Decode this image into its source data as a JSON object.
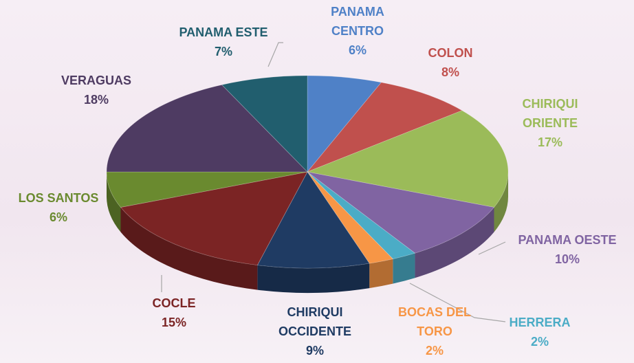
{
  "chart_data": {
    "type": "pie",
    "categories": [
      "PANAMA CENTRO",
      "COLON",
      "CHIRIQUI ORIENTE",
      "PANAMA OESTE",
      "HERRERA",
      "BOCAS DEL TORO",
      "CHIRIQUI OCCIDENTE",
      "COCLE",
      "LOS SANTOS",
      "VERAGUAS",
      "PANAMA ESTE"
    ],
    "values": [
      6,
      8,
      17,
      10,
      2,
      2,
      9,
      15,
      6,
      18,
      7
    ],
    "value_labels": [
      "6%",
      "8%",
      "17%",
      "10%",
      "2%",
      "2%",
      "9%",
      "15%",
      "6%",
      "18%",
      "7%"
    ],
    "colors": [
      "#4f81c7",
      "#c0504d",
      "#9bbb59",
      "#8064a2",
      "#4bacc6",
      "#f79646",
      "#1f3b63",
      "#7b2424",
      "#6a8a2f",
      "#4e3b62",
      "#215e6e"
    ]
  }
}
